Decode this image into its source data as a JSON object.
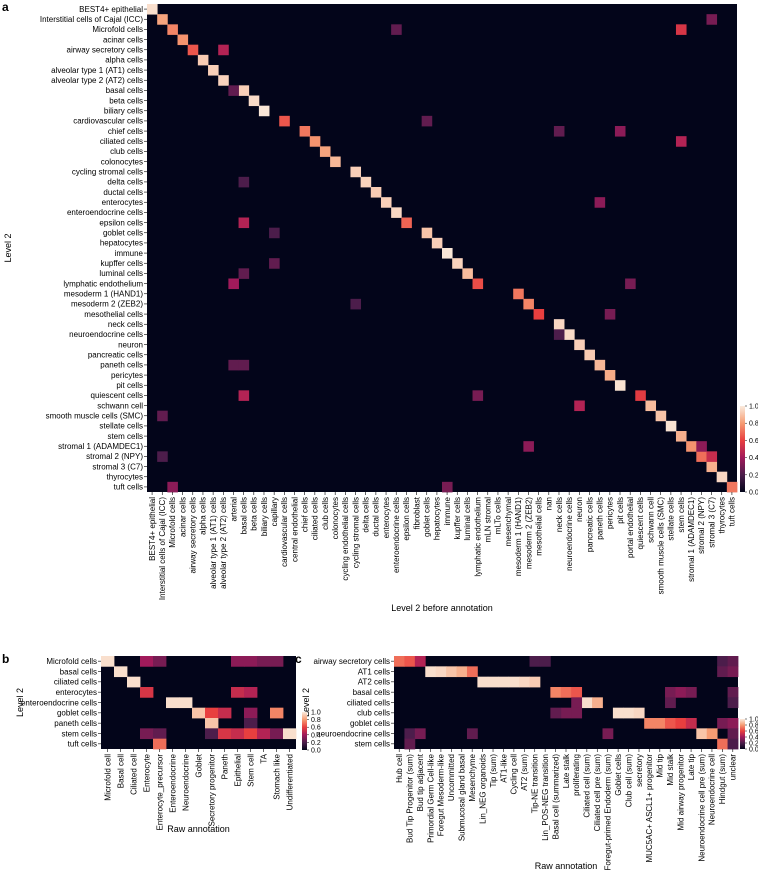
{
  "chart_data": [
    {
      "panel": "a",
      "type": "heatmap",
      "ylabel": "Level 2",
      "xlabel": "Level 2 before annotation",
      "rows": [
        "BEST4+ epithelial",
        "Interstitial cells of Cajal (ICC)",
        "Microfold cells",
        "acinar cells",
        "airway secretory cells",
        "alpha cells",
        "alveolar type 1 (AT1) cells",
        "alveolar type 2 (AT2) cells",
        "basal cells",
        "beta cells",
        "biliary cells",
        "cardiovascular cells",
        "chief cells",
        "ciliated cells",
        "club cells",
        "colonocytes",
        "cycling stromal cells",
        "delta cells",
        "ductal cells",
        "enterocytes",
        "enteroendocrine cells",
        "epsilon cells",
        "goblet cells",
        "hepatocytes",
        "immune",
        "kupffer cells",
        "luminal cells",
        "lymphatic endothelium",
        "mesoderm 1 (HAND1)",
        "mesoderm 2 (ZEB2)",
        "mesothelial cells",
        "neck cells",
        "neuroendocrine cells",
        "neuron",
        "pancreatic cells",
        "paneth cells",
        "pericytes",
        "pit cells",
        "quiescent cells",
        "schwann cell",
        "smooth muscle cells (SMC)",
        "stellate cells",
        "stem cells",
        "stromal 1 (ADAMDEC1)",
        "stromal 2 (NPY)",
        "stromal 3 (C7)",
        "thyrocytes",
        "tuft cells"
      ],
      "columns": [
        "BEST4+ epithelial",
        "Interstitial cells of Cajal (ICC)",
        "Microfold cells",
        "acinar cells",
        "airway secretory cells",
        "alpha cells",
        "alveolar type 1 (AT1) cells",
        "alveolar type 2 (AT2) cells",
        "arterial",
        "basal cells",
        "beta cells",
        "biliary cells",
        "capillary",
        "cardiovascular cells",
        "central endothelial",
        "chief cells",
        "ciliated cells",
        "club cells",
        "colonocytes",
        "cycling endothelial cells",
        "cycling stromal cells",
        "delta cells",
        "ductal cells",
        "enterocytes",
        "enteroendocrine cells",
        "epsilon cells",
        "fibroblast",
        "goblet cells",
        "hepatocytes",
        "immune",
        "kupffer cells",
        "luminal cells",
        "lymphatic endothelium",
        "mLN stromal",
        "mLTo cells",
        "mesenchymal",
        "mesoderm 1 (HAND1)",
        "mesoderm 2 (ZEB2)",
        "mesothelial cells",
        "nan",
        "neck cells",
        "neuroendocrine cells",
        "neuron",
        "pancreatic cells",
        "paneth cells",
        "pericytes",
        "pit cells",
        "portal endothelial",
        "quiescent cells",
        "schwann cell",
        "smooth muscle cells (SMC)",
        "stellate cells",
        "stem cells",
        "stromal 1 (ADAMDEC1)",
        "stromal 2 (NPY)",
        "stromal 3 (C7)",
        "thyrocytes",
        "tuft cells"
      ],
      "cells": [
        [
          0,
          0,
          0.97
        ],
        [
          1,
          1,
          0.82
        ],
        [
          2,
          2,
          0.75
        ],
        [
          3,
          3,
          0.78
        ],
        [
          4,
          4,
          0.65
        ],
        [
          5,
          5,
          0.92
        ],
        [
          6,
          6,
          0.93
        ],
        [
          7,
          7,
          0.94
        ],
        [
          8,
          9,
          0.93
        ],
        [
          9,
          10,
          0.96
        ],
        [
          10,
          11,
          0.99
        ],
        [
          11,
          13,
          0.65
        ],
        [
          12,
          15,
          0.72
        ],
        [
          13,
          16,
          0.78
        ],
        [
          14,
          17,
          0.82
        ],
        [
          15,
          18,
          0.87
        ],
        [
          16,
          20,
          0.93
        ],
        [
          17,
          21,
          0.94
        ],
        [
          18,
          22,
          0.92
        ],
        [
          19,
          23,
          0.93
        ],
        [
          20,
          24,
          0.95
        ],
        [
          21,
          25,
          0.68
        ],
        [
          22,
          27,
          0.9
        ],
        [
          23,
          28,
          0.93
        ],
        [
          24,
          29,
          0.99
        ],
        [
          25,
          30,
          0.94
        ],
        [
          26,
          31,
          0.88
        ],
        [
          27,
          32,
          0.63
        ],
        [
          28,
          36,
          0.72
        ],
        [
          29,
          37,
          0.75
        ],
        [
          30,
          38,
          0.6
        ],
        [
          31,
          40,
          0.95
        ],
        [
          32,
          41,
          0.96
        ],
        [
          33,
          42,
          0.93
        ],
        [
          34,
          43,
          0.92
        ],
        [
          35,
          44,
          0.87
        ],
        [
          36,
          45,
          0.84
        ],
        [
          37,
          46,
          0.98
        ],
        [
          38,
          48,
          0.58
        ],
        [
          39,
          49,
          0.88
        ],
        [
          40,
          50,
          0.9
        ],
        [
          41,
          51,
          0.98
        ],
        [
          42,
          52,
          0.85
        ],
        [
          43,
          53,
          0.78
        ],
        [
          44,
          54,
          0.7
        ],
        [
          45,
          55,
          0.85
        ],
        [
          46,
          56,
          0.95
        ],
        [
          47,
          57,
          0.72
        ],
        [
          1,
          55,
          0.3
        ],
        [
          2,
          24,
          0.25
        ],
        [
          2,
          52,
          0.55
        ],
        [
          4,
          7,
          0.45
        ],
        [
          8,
          8,
          0.25
        ],
        [
          11,
          27,
          0.25
        ],
        [
          12,
          40,
          0.25
        ],
        [
          12,
          46,
          0.35
        ],
        [
          13,
          52,
          0.45
        ],
        [
          17,
          9,
          0.2
        ],
        [
          19,
          44,
          0.35
        ],
        [
          21,
          9,
          0.45
        ],
        [
          22,
          12,
          0.2
        ],
        [
          25,
          12,
          0.25
        ],
        [
          26,
          9,
          0.25
        ],
        [
          27,
          8,
          0.4
        ],
        [
          27,
          47,
          0.3
        ],
        [
          29,
          20,
          0.2
        ],
        [
          30,
          45,
          0.3
        ],
        [
          32,
          40,
          0.2
        ],
        [
          35,
          8,
          0.25
        ],
        [
          35,
          9,
          0.25
        ],
        [
          38,
          9,
          0.45
        ],
        [
          38,
          32,
          0.3
        ],
        [
          39,
          42,
          0.45
        ],
        [
          40,
          1,
          0.25
        ],
        [
          43,
          37,
          0.35
        ],
        [
          43,
          54,
          0.35
        ],
        [
          44,
          1,
          0.2
        ],
        [
          44,
          55,
          0.5
        ],
        [
          47,
          2,
          0.35
        ],
        [
          47,
          29,
          0.3
        ]
      ]
    },
    {
      "panel": "b",
      "type": "heatmap",
      "ylabel": "Level 2",
      "xlabel": "Raw annotation",
      "rows": [
        "Microfold cells",
        "basal cells",
        "ciliated cells",
        "enterocytes",
        "enteroendocrine cells",
        "goblet cells",
        "paneth cells",
        "stem cells",
        "tuft cells"
      ],
      "columns": [
        "Microfold cell",
        "Basal cell",
        "Ciliated cell",
        "Enterocyte",
        "Enterocyte_precursor",
        "Enteroendocrine",
        "Neuroendocrine",
        "Goblet",
        "Secretory progenitor",
        "Paneth",
        "Epithelial",
        "Stem cell",
        "TA",
        "Stomach like",
        "Undifferentiated"
      ],
      "cells": [
        [
          0,
          0,
          0.97
        ],
        [
          0,
          3,
          0.4
        ],
        [
          0,
          4,
          0.3
        ],
        [
          0,
          10,
          0.35
        ],
        [
          0,
          11,
          0.35
        ],
        [
          0,
          12,
          0.3
        ],
        [
          0,
          13,
          0.3
        ],
        [
          1,
          1,
          0.97
        ],
        [
          2,
          2,
          0.97
        ],
        [
          3,
          3,
          0.55
        ],
        [
          3,
          10,
          0.5
        ],
        [
          3,
          11,
          0.45
        ],
        [
          4,
          5,
          0.97
        ],
        [
          4,
          6,
          0.97
        ],
        [
          5,
          7,
          0.9
        ],
        [
          5,
          8,
          0.6
        ],
        [
          5,
          9,
          0.5
        ],
        [
          5,
          11,
          0.35
        ],
        [
          5,
          13,
          0.75
        ],
        [
          6,
          8,
          0.9
        ],
        [
          6,
          11,
          0.2
        ],
        [
          7,
          3,
          0.3
        ],
        [
          7,
          4,
          0.25
        ],
        [
          7,
          8,
          0.2
        ],
        [
          7,
          9,
          0.55
        ],
        [
          7,
          10,
          0.5
        ],
        [
          7,
          11,
          0.6
        ],
        [
          7,
          12,
          0.45
        ],
        [
          7,
          13,
          0.3
        ],
        [
          7,
          14,
          0.97
        ],
        [
          8,
          4,
          0.7
        ]
      ]
    },
    {
      "panel": "c",
      "type": "heatmap",
      "ylabel": "Level 2",
      "xlabel": "Raw annotation",
      "rows": [
        "airway secretory cells",
        "AT1 cells",
        "AT2 cells",
        "basal cells",
        "ciliated cells",
        "club cells",
        "goblet cells",
        "neuroendocrine cells",
        "stem cells"
      ],
      "columns": [
        "Hub cell",
        "Bud Tip Progenitor (sum)",
        "Bud tip adjacent",
        "Primordial Germ Cell-like",
        "Foregut Mesoderm-like",
        "Uncommitted",
        "Submucosal gland basal",
        "Mesenchyme",
        "Lin_NEG organoids",
        "Tip (sum)",
        "AT1-like",
        "Cycling cell",
        "AT2 (sum)",
        "Tip-NE transition",
        "Lin_POS-NEG transition",
        "Basal cell (summarized)",
        "Late stalk",
        "proliferating",
        "Ciliated cell (sum)",
        "Ciliated cell pre (sum)",
        "Foregut-primed Endoderm (sum)",
        "Goblet cells",
        "Club cell (sum)",
        "secretory",
        "MUC5AC+ ASCL1+ progenitor",
        "Mid tip",
        "Mid stalk",
        "Mid airway progenitor",
        "Late tip",
        "Neuroendocrine cell pre (sum)",
        "Neuroendocrine cell",
        "Hindgut (sum)",
        "unclear"
      ],
      "cells": [
        [
          0,
          0,
          0.7
        ],
        [
          0,
          1,
          0.65
        ],
        [
          0,
          2,
          0.45
        ],
        [
          0,
          13,
          0.2
        ],
        [
          0,
          14,
          0.2
        ],
        [
          0,
          31,
          0.2
        ],
        [
          0,
          32,
          0.25
        ],
        [
          1,
          3,
          0.97
        ],
        [
          1,
          4,
          0.95
        ],
        [
          1,
          5,
          0.9
        ],
        [
          1,
          6,
          0.85
        ],
        [
          1,
          7,
          0.7
        ],
        [
          1,
          31,
          0.25
        ],
        [
          1,
          32,
          0.3
        ],
        [
          2,
          8,
          0.97
        ],
        [
          2,
          9,
          0.97
        ],
        [
          2,
          10,
          0.97
        ],
        [
          2,
          11,
          0.97
        ],
        [
          2,
          12,
          0.95
        ],
        [
          2,
          13,
          0.92
        ],
        [
          3,
          15,
          0.75
        ],
        [
          3,
          16,
          0.7
        ],
        [
          3,
          17,
          0.65
        ],
        [
          3,
          26,
          0.3
        ],
        [
          3,
          27,
          0.35
        ],
        [
          3,
          28,
          0.3
        ],
        [
          3,
          32,
          0.25
        ],
        [
          4,
          18,
          0.97
        ],
        [
          4,
          19,
          0.85
        ],
        [
          4,
          17,
          0.3
        ],
        [
          4,
          26,
          0.25
        ],
        [
          4,
          32,
          0.2
        ],
        [
          5,
          21,
          0.97
        ],
        [
          5,
          22,
          0.97
        ],
        [
          5,
          23,
          0.95
        ],
        [
          5,
          16,
          0.3
        ],
        [
          5,
          15,
          0.25
        ],
        [
          5,
          17,
          0.3
        ],
        [
          6,
          24,
          0.75
        ],
        [
          6,
          25,
          0.75
        ],
        [
          6,
          26,
          0.65
        ],
        [
          6,
          27,
          0.6
        ],
        [
          6,
          28,
          0.5
        ],
        [
          6,
          31,
          0.3
        ],
        [
          6,
          32,
          0.35
        ],
        [
          7,
          29,
          0.9
        ],
        [
          7,
          30,
          0.8
        ],
        [
          7,
          1,
          0.2
        ],
        [
          7,
          2,
          0.3
        ],
        [
          7,
          7,
          0.25
        ],
        [
          7,
          20,
          0.3
        ],
        [
          7,
          32,
          0.25
        ],
        [
          8,
          31,
          0.7
        ],
        [
          8,
          1,
          0.25
        ],
        [
          8,
          32,
          0.2
        ]
      ]
    }
  ],
  "colorbar": {
    "ticks": [
      "0.0",
      "0.2",
      "0.4",
      "0.6",
      "0.8",
      "1.0"
    ]
  },
  "panel_labels": [
    "a",
    "b",
    "c"
  ]
}
